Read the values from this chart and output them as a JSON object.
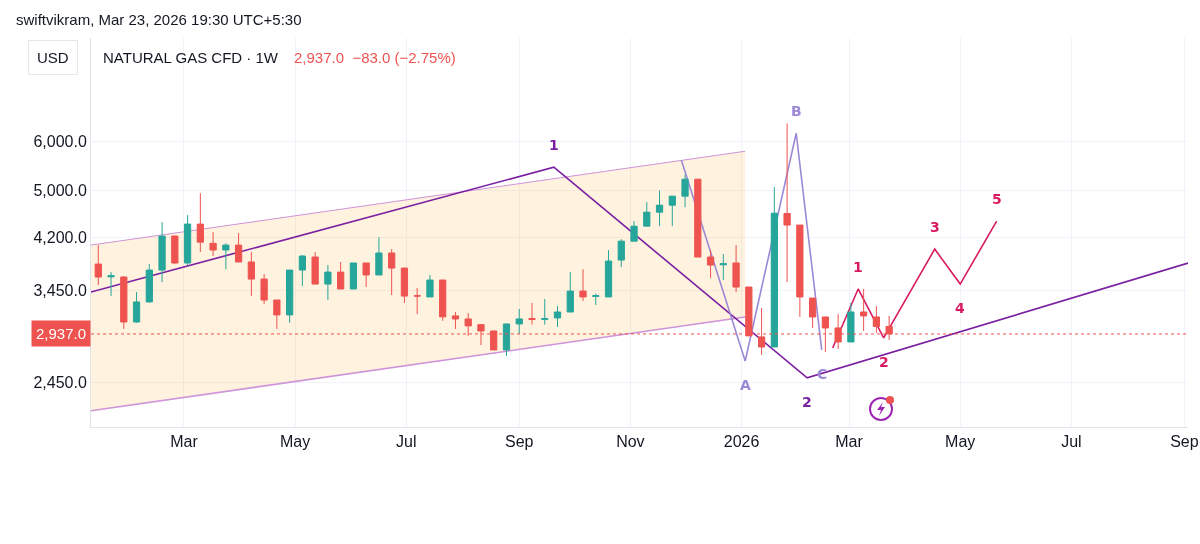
{
  "chart_data": {
    "type": "candlestick",
    "title": "NATURAL GAS CFD · 1W",
    "subtitle": "2,937.0  −83.0 (−2.75%)",
    "ylabel": "USD",
    "x": [
      "2025-01-13",
      "2025-01-20",
      "2025-01-27",
      "2025-02-03",
      "2025-02-10",
      "2025-02-17",
      "2025-02-24",
      "2025-03-03",
      "2025-03-10",
      "2025-03-17",
      "2025-03-24",
      "2025-03-31",
      "2025-04-07",
      "2025-04-14",
      "2025-04-21",
      "2025-04-28",
      "2025-05-05",
      "2025-05-12",
      "2025-05-19",
      "2025-05-26",
      "2025-06-02",
      "2025-06-09",
      "2025-06-16",
      "2025-06-23",
      "2025-06-30",
      "2025-07-07",
      "2025-07-14",
      "2025-07-21",
      "2025-07-28",
      "2025-08-04",
      "2025-08-11",
      "2025-08-18",
      "2025-08-25",
      "2025-09-01",
      "2025-09-08",
      "2025-09-15",
      "2025-09-22",
      "2025-09-29",
      "2025-10-06",
      "2025-10-13",
      "2025-10-20",
      "2025-10-27",
      "2025-11-03",
      "2025-11-10",
      "2025-11-17",
      "2025-11-24",
      "2025-12-01",
      "2025-12-08",
      "2025-12-15",
      "2025-12-22",
      "2025-12-29",
      "2026-01-05",
      "2026-01-12",
      "2026-01-19",
      "2026-01-26",
      "2026-02-02",
      "2026-02-09",
      "2026-02-16",
      "2026-02-23",
      "2026-03-02",
      "2026-03-09",
      "2026-03-16",
      "2026-03-23"
    ],
    "ohlc": [
      [
        3806,
        4083,
        3521,
        3627
      ],
      [
        3630,
        3695,
        3380,
        3645
      ],
      [
        3627,
        3640,
        2992,
        3070
      ],
      [
        3070,
        3431,
        3060,
        3307
      ],
      [
        3307,
        3806,
        3300,
        3722
      ],
      [
        3722,
        4446,
        3560,
        4222
      ],
      [
        4222,
        4230,
        3810,
        3821
      ],
      [
        3821,
        4563,
        3792,
        4414
      ],
      [
        4414,
        4950,
        3980,
        4128
      ],
      [
        4110,
        4285,
        3921,
        4009
      ],
      [
        4009,
        4110,
        3735,
        4083
      ],
      [
        4083,
        4269,
        3835,
        3835
      ],
      [
        3835,
        3980,
        3380,
        3600
      ],
      [
        3600,
        3668,
        3282,
        3331
      ],
      [
        3331,
        3331,
        2992,
        3152
      ],
      [
        3152,
        3722,
        3060,
        3722
      ],
      [
        3722,
        3935,
        3509,
        3921
      ],
      [
        3906,
        3980,
        3534,
        3534
      ],
      [
        3534,
        3792,
        3331,
        3694
      ],
      [
        3694,
        3835,
        3470,
        3470
      ],
      [
        3470,
        3821,
        3470,
        3821
      ],
      [
        3821,
        3821,
        3495,
        3655
      ],
      [
        3655,
        4206,
        3655,
        3965
      ],
      [
        3965,
        4023,
        3393,
        3750
      ],
      [
        3750,
        3750,
        3295,
        3380
      ],
      [
        3385,
        3483,
        3163,
        3380
      ],
      [
        3369,
        3655,
        3369,
        3587
      ],
      [
        3587,
        3587,
        3083,
        3129
      ],
      [
        3140,
        3186,
        2992,
        3105
      ],
      [
        3105,
        3174,
        2916,
        3026
      ],
      [
        3040,
        3040,
        2819,
        2970
      ],
      [
        2970,
        2970,
        2768,
        2768
      ],
      [
        2768,
        3048,
        2707,
        3048
      ],
      [
        3048,
        3222,
        2938,
        3105
      ],
      [
        3110,
        3295,
        3040,
        3100
      ],
      [
        3100,
        3344,
        3040,
        3110
      ],
      [
        3117,
        3258,
        3015,
        3186
      ],
      [
        3186,
        3695,
        3186,
        3443
      ],
      [
        3443,
        3735,
        3319,
        3369
      ],
      [
        3375,
        3410,
        3270,
        3385
      ],
      [
        3369,
        4009,
        3369,
        3849
      ],
      [
        3863,
        4174,
        3764,
        4143
      ],
      [
        4143,
        4463,
        4143,
        4380
      ],
      [
        4380,
        4788,
        4380,
        4613
      ],
      [
        4613,
        5000,
        4380,
        4734
      ],
      [
        4734,
        4896,
        4380,
        4896
      ],
      [
        4896,
        5300,
        4699,
        5213
      ],
      [
        5213,
        5213,
        3906,
        3906
      ],
      [
        3906,
        4009,
        3613,
        3792
      ],
      [
        3795,
        3950,
        3587,
        3810
      ],
      [
        3821,
        4083,
        3431,
        3495
      ],
      [
        3495,
        3495,
        2916,
        2916
      ],
      [
        2905,
        3234,
        2717,
        2799
      ],
      [
        2799,
        5061,
        2799,
        4596
      ],
      [
        4590,
        6414,
        3560,
        4398
      ],
      [
        4398,
        4398,
        3128,
        3369
      ],
      [
        3355,
        3355,
        3003,
        3128
      ],
      [
        3128,
        3128,
        2748,
        3003
      ],
      [
        3003,
        3163,
        2779,
        2851
      ],
      [
        2851,
        3295,
        2851,
        3186
      ],
      [
        3186,
        3470,
        2970,
        3140
      ],
      [
        3128,
        3258,
        2949,
        3020
      ],
      [
        3020,
        3140,
        2872,
        2937
      ]
    ],
    "colors": [
      "#ef5350",
      "#26a69a",
      "#ef5350",
      "#26a69a",
      "#26a69a",
      "#26a69a",
      "#ef5350",
      "#26a69a",
      "#ef5350",
      "#ef5350",
      "#26a69a",
      "#ef5350",
      "#ef5350",
      "#ef5350",
      "#ef5350",
      "#26a69a",
      "#26a69a",
      "#ef5350",
      "#26a69a",
      "#ef5350",
      "#26a69a",
      "#ef5350",
      "#26a69a",
      "#ef5350",
      "#ef5350",
      "#ef5350",
      "#26a69a",
      "#ef5350",
      "#ef5350",
      "#ef5350",
      "#ef5350",
      "#ef5350",
      "#26a69a",
      "#26a69a",
      "#ef5350",
      "#26a69a",
      "#26a69a",
      "#26a69a",
      "#ef5350",
      "#26a69a",
      "#26a69a",
      "#26a69a",
      "#26a69a",
      "#26a69a",
      "#26a69a",
      "#26a69a",
      "#26a69a",
      "#ef5350",
      "#ef5350",
      "#26a69a",
      "#ef5350",
      "#ef5350",
      "#ef5350",
      "#26a69a",
      "#ef5350",
      "#ef5350",
      "#ef5350",
      "#ef5350",
      "#ef5350",
      "#26a69a",
      "#ef5350",
      "#ef5350",
      "#ef5350"
    ],
    "series": [
      {
        "type": "line",
        "color": "#ce93d8",
        "x": [
          "2025-01-09",
          "2026-01-03"
        ],
        "values": [
          4083,
          5783
        ],
        "lower": [
          2209,
          3128
        ],
        "upper": [
          4083,
          5783
        ]
      },
      {
        "type": "line",
        "color": "#ce93d8",
        "x": [
          "2025-01-09",
          "2026-01-03"
        ],
        "values": [
          2209,
          3128
        ]
      },
      {
        "type": "line",
        "color": "#7b1fa2",
        "x": [
          "2025-01-09",
          "2025-09-20",
          "2026-02-06",
          "2026-09-03"
        ],
        "values": [
          3431,
          5450,
          2496,
          3820
        ]
      },
      {
        "type": "line",
        "color": "#9c89d6",
        "x": [
          "2025-11-29",
          "2026-01-03",
          "2026-01-31",
          "2026-02-14"
        ],
        "values": [
          5594,
          2657,
          6181,
          2768
        ]
      },
      {
        "type": "line",
        "color": "#d81b60",
        "x": [
          "2026-02-20",
          "2026-03-06",
          "2026-03-20",
          "2026-04-17",
          "2026-05-01",
          "2026-05-21"
        ],
        "values": [
          2788,
          3470,
          2894,
          4023,
          3534,
          4463
        ]
      }
    ],
    "xlim": [
      "2025-01-09",
      "2026-09-03"
    ],
    "xticks": [
      {
        "value": "2025-03-01",
        "label": "Mar"
      },
      {
        "value": "2025-05-01",
        "label": "May"
      },
      {
        "value": "2025-07-01",
        "label": "Jul"
      },
      {
        "value": "2025-09-01",
        "label": "Sep"
      },
      {
        "value": "2025-11-01",
        "label": "Nov"
      },
      {
        "value": "2026-01-01",
        "label": "2026"
      },
      {
        "value": "2026-03-01",
        "label": "Mar"
      },
      {
        "value": "2026-05-01",
        "label": "May"
      },
      {
        "value": "2026-07-01",
        "label": "Jul"
      },
      {
        "value": "2026-09-01",
        "label": "Sep"
      }
    ],
    "ylim": [
      2080,
      8800
    ],
    "yticks": [
      {
        "value": 2450,
        "label": "2,450.0"
      },
      {
        "value": 3450,
        "label": "3,450.0"
      },
      {
        "value": 4200,
        "label": "4,200.0"
      },
      {
        "value": 5000,
        "label": "5,000.0"
      },
      {
        "value": 6000,
        "label": "6,000.0"
      }
    ],
    "log": "y",
    "grid": true,
    "ref_lines": [
      {
        "axis": "y",
        "value": 2937,
        "label": "2,937.0",
        "color": "#ef5350",
        "line_style": "dotted"
      }
    ],
    "annotations": [
      "swiftvikram, Mar 23, 2026 19:30 UTC+5:30",
      {
        "text": "1",
        "x": "2025-09-20",
        "y": 5450
      },
      {
        "text": "2",
        "x": "2026-02-06",
        "y": 2496
      },
      {
        "text": "A",
        "x": "2026-01-03",
        "y": 2657
      },
      {
        "text": "B",
        "x": "2026-01-31",
        "y": 6181
      },
      {
        "text": "C",
        "x": "2026-02-14",
        "y": 2768
      },
      {
        "text": "1",
        "x": "2026-03-06",
        "y": 3470
      },
      {
        "text": "2",
        "x": "2026-03-20",
        "y": 2894
      },
      {
        "text": "3",
        "x": "2026-04-17",
        "y": 4023
      },
      {
        "text": "4",
        "x": "2026-05-01",
        "y": 3534
      },
      {
        "text": "5",
        "x": "2026-05-21",
        "y": 4463
      }
    ]
  }
}
